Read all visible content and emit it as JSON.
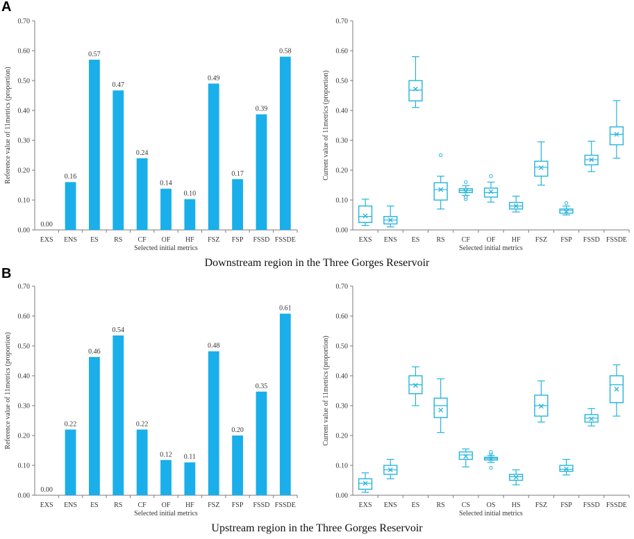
{
  "panels": {
    "a": {
      "label": "A",
      "caption": "Downstream region in the Three Gorges Reservoir"
    },
    "b": {
      "label": "B",
      "caption": "Upstream region in the Three Gorges Reservoir"
    }
  },
  "colors": {
    "bar": "#1AAFEA",
    "box": "#22B3DD",
    "axis": "#7a7a7a",
    "text": "#333333"
  },
  "chart_data": [
    {
      "id": "a-bar",
      "type": "bar",
      "ylabel": "Reference value of 11metrics (proportion)",
      "xlabel": "Selected initial metrics",
      "ylim": [
        0,
        0.7
      ],
      "yticks": [
        "0.00",
        "0.10",
        "0.20",
        "0.30",
        "0.40",
        "0.50",
        "0.60",
        "0.70"
      ],
      "categories": [
        "EXS",
        "ENS",
        "ES",
        "RS",
        "CF",
        "OF",
        "HF",
        "FSZ",
        "FSP",
        "FSSD",
        "FSSDE"
      ],
      "values": [
        0.0,
        0.16,
        0.57,
        0.467,
        0.24,
        0.138,
        0.103,
        0.49,
        0.17,
        0.387,
        0.58
      ],
      "labels": [
        "0.00",
        "0.16",
        "0.57",
        "0.47",
        "0.24",
        "0.14",
        "0.10",
        "0.49",
        "0.17",
        "0.39",
        "0.58"
      ]
    },
    {
      "id": "a-box",
      "type": "box",
      "ylabel": "Current value of 11metrics (proportion)",
      "xlabel": "Selected initial metrics",
      "ylim": [
        0,
        0.7
      ],
      "yticks": [
        "0.00",
        "0.10",
        "0.20",
        "0.30",
        "0.40",
        "0.50",
        "0.60",
        "0.70"
      ],
      "categories": [
        "EXS",
        "ENS",
        "ES",
        "RS",
        "CF",
        "OF",
        "HF",
        "FSZ",
        "FSP",
        "FSSD",
        "FSSDE"
      ],
      "boxes": [
        {
          "min": 0.015,
          "q1": 0.025,
          "median": 0.045,
          "q3": 0.08,
          "max": 0.103,
          "mean": 0.047,
          "outliers": []
        },
        {
          "min": 0.01,
          "q1": 0.02,
          "median": 0.033,
          "q3": 0.045,
          "max": 0.08,
          "mean": 0.033,
          "outliers": []
        },
        {
          "min": 0.41,
          "q1": 0.432,
          "median": 0.468,
          "q3": 0.5,
          "max": 0.58,
          "mean": 0.472,
          "outliers": []
        },
        {
          "min": 0.07,
          "q1": 0.1,
          "median": 0.135,
          "q3": 0.158,
          "max": 0.18,
          "mean": 0.135,
          "outliers": [
            0.25
          ]
        },
        {
          "min": 0.115,
          "q1": 0.125,
          "median": 0.132,
          "q3": 0.138,
          "max": 0.148,
          "mean": 0.13,
          "outliers": [
            0.103,
            0.11,
            0.16
          ]
        },
        {
          "min": 0.093,
          "q1": 0.11,
          "median": 0.125,
          "q3": 0.14,
          "max": 0.16,
          "mean": 0.128,
          "outliers": [
            0.18
          ]
        },
        {
          "min": 0.06,
          "q1": 0.07,
          "median": 0.08,
          "q3": 0.092,
          "max": 0.113,
          "mean": 0.08,
          "outliers": []
        },
        {
          "min": 0.15,
          "q1": 0.18,
          "median": 0.21,
          "q3": 0.23,
          "max": 0.295,
          "mean": 0.208,
          "outliers": []
        },
        {
          "min": 0.05,
          "q1": 0.056,
          "median": 0.065,
          "q3": 0.07,
          "max": 0.08,
          "mean": 0.062,
          "outliers": [
            0.09
          ]
        },
        {
          "min": 0.195,
          "q1": 0.218,
          "median": 0.235,
          "q3": 0.25,
          "max": 0.297,
          "mean": 0.235,
          "outliers": []
        },
        {
          "min": 0.24,
          "q1": 0.285,
          "median": 0.32,
          "q3": 0.345,
          "max": 0.433,
          "mean": 0.32,
          "outliers": []
        }
      ]
    },
    {
      "id": "b-bar",
      "type": "bar",
      "ylabel": "Reference value of 11metrics (proportion)",
      "xlabel": "Selected initial metrics",
      "ylim": [
        0,
        0.7
      ],
      "yticks": [
        "0.00",
        "0.10",
        "0.20",
        "0.30",
        "0.40",
        "0.50",
        "0.60",
        "0.70"
      ],
      "categories": [
        "EXS",
        "ENS",
        "ES",
        "RS",
        "CF",
        "OF",
        "HF",
        "FSZ",
        "FSP",
        "FSSD",
        "FSSDE"
      ],
      "values": [
        0.0,
        0.22,
        0.463,
        0.535,
        0.22,
        0.118,
        0.11,
        0.482,
        0.2,
        0.347,
        0.608
      ],
      "labels": [
        "0.00",
        "0.22",
        "0.46",
        "0.54",
        "0.22",
        "0.12",
        "0.11",
        "0.48",
        "0.20",
        "0.35",
        "0.61"
      ]
    },
    {
      "id": "b-box",
      "type": "box",
      "ylabel": "Current value of 11metrics (proportion)",
      "xlabel": "Selected initial metrics",
      "ylim": [
        0,
        0.7
      ],
      "yticks": [
        "0.00",
        "0.10",
        "0.20",
        "0.30",
        "0.40",
        "0.50",
        "0.60",
        "0.70"
      ],
      "categories": [
        "EXS",
        "ENS",
        "ES",
        "RS",
        "CS",
        "OS",
        "HS",
        "FSZ",
        "FSP",
        "FSSD",
        "FSSDE"
      ],
      "boxes": [
        {
          "min": 0.01,
          "q1": 0.02,
          "median": 0.04,
          "q3": 0.055,
          "max": 0.075,
          "mean": 0.04,
          "outliers": []
        },
        {
          "min": 0.055,
          "q1": 0.07,
          "median": 0.085,
          "q3": 0.1,
          "max": 0.12,
          "mean": 0.085,
          "outliers": []
        },
        {
          "min": 0.3,
          "q1": 0.34,
          "median": 0.37,
          "q3": 0.4,
          "max": 0.43,
          "mean": 0.368,
          "outliers": []
        },
        {
          "min": 0.21,
          "q1": 0.26,
          "median": 0.3,
          "q3": 0.325,
          "max": 0.39,
          "mean": 0.285,
          "outliers": []
        },
        {
          "min": 0.095,
          "q1": 0.12,
          "median": 0.135,
          "q3": 0.145,
          "max": 0.155,
          "mean": 0.13,
          "outliers": []
        },
        {
          "min": 0.11,
          "q1": 0.118,
          "median": 0.123,
          "q3": 0.127,
          "max": 0.133,
          "mean": 0.122,
          "outliers": [
            0.092,
            0.14,
            0.145
          ]
        },
        {
          "min": 0.035,
          "q1": 0.05,
          "median": 0.062,
          "q3": 0.07,
          "max": 0.085,
          "mean": 0.06,
          "outliers": []
        },
        {
          "min": 0.245,
          "q1": 0.265,
          "median": 0.3,
          "q3": 0.335,
          "max": 0.383,
          "mean": 0.298,
          "outliers": []
        },
        {
          "min": 0.068,
          "q1": 0.08,
          "median": 0.087,
          "q3": 0.1,
          "max": 0.12,
          "mean": 0.088,
          "outliers": []
        },
        {
          "min": 0.232,
          "q1": 0.245,
          "median": 0.258,
          "q3": 0.27,
          "max": 0.29,
          "mean": 0.256,
          "outliers": []
        },
        {
          "min": 0.265,
          "q1": 0.31,
          "median": 0.37,
          "q3": 0.4,
          "max": 0.437,
          "mean": 0.355,
          "outliers": []
        }
      ]
    }
  ]
}
